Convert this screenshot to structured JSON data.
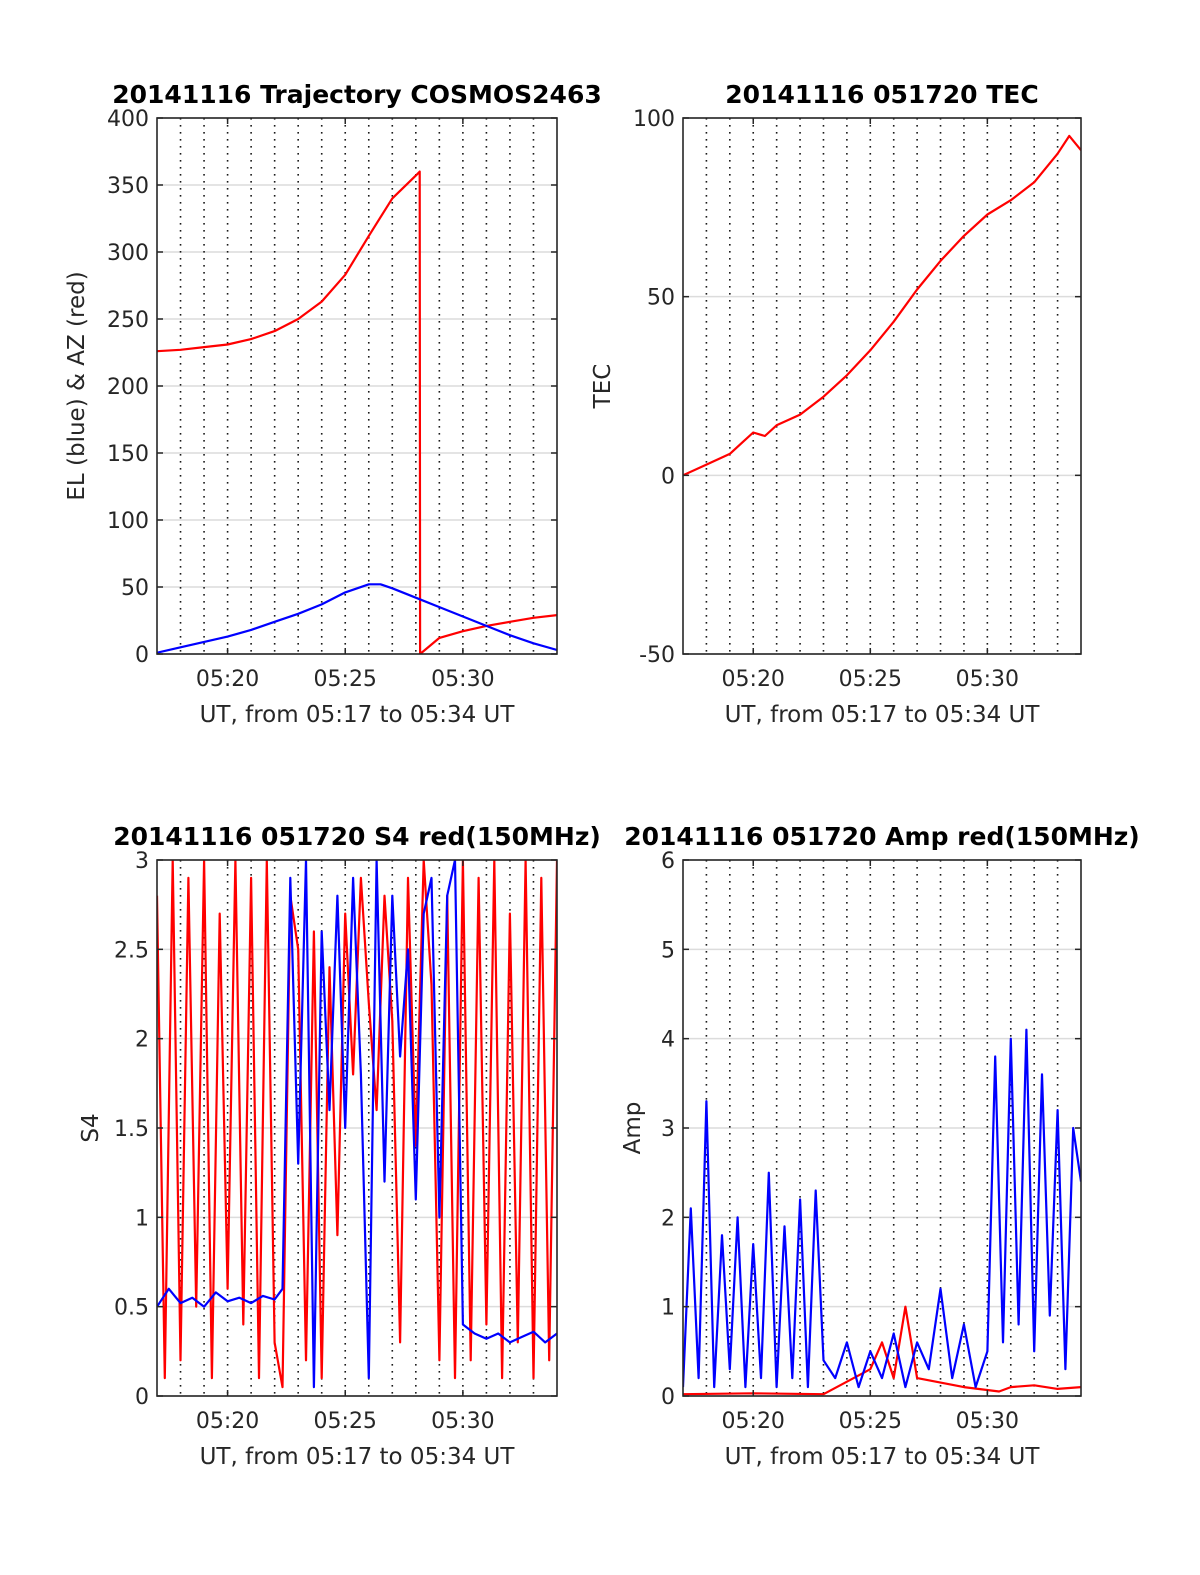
{
  "figure": {
    "background": "#ffffff",
    "axis_color": "#262626",
    "grid_color": "#dcdcdc"
  },
  "chart_data": [
    {
      "id": "trajectory",
      "type": "line",
      "title": "20141116 Trajectory COSMOS2463",
      "xlabel": "UT, from 05:17 to 05:34 UT",
      "ylabel": "EL (blue) & AZ (red)",
      "xlim": [
        "05:17:00",
        "05:34:00"
      ],
      "ylim": [
        0,
        400
      ],
      "yticks": [
        0,
        50,
        100,
        150,
        200,
        250,
        300,
        350,
        400
      ],
      "xticks": [
        "05:20",
        "05:25",
        "05:30"
      ],
      "grid": "horizontal grid lines, dotted vertical lines every minute",
      "series": [
        {
          "color": "#ff0000",
          "x": [
            "05:17:00",
            "05:18:00",
            "05:19:00",
            "05:20:00",
            "05:21:00",
            "05:22:00",
            "05:23:00",
            "05:24:00",
            "05:25:00",
            "05:26:00",
            "05:27:00",
            "05:28:00",
            "05:28:10",
            "05:28:11",
            "05:29:00",
            "05:30:00",
            "05:31:00",
            "05:32:00",
            "05:33:00",
            "05:34:00"
          ],
          "y": [
            226,
            227,
            229,
            231,
            235,
            241,
            250,
            263,
            283,
            312,
            340,
            357,
            360,
            0,
            12,
            17,
            21,
            24,
            27,
            29
          ]
        },
        {
          "color": "#0000ff",
          "x": [
            "05:17:00",
            "05:18:00",
            "05:19:00",
            "05:20:00",
            "05:21:00",
            "05:22:00",
            "05:23:00",
            "05:24:00",
            "05:25:00",
            "05:26:00",
            "05:26:30",
            "05:27:00",
            "05:28:00",
            "05:29:00",
            "05:30:00",
            "05:31:00",
            "05:32:00",
            "05:33:00",
            "05:34:00"
          ],
          "y": [
            1,
            5,
            9,
            13,
            18,
            24,
            30,
            37,
            46,
            52,
            52,
            49,
            42,
            35,
            28,
            21,
            14,
            8,
            3
          ]
        }
      ]
    },
    {
      "id": "tec",
      "type": "line",
      "title": "20141116 051720 TEC",
      "xlabel": "UT, from 05:17 to 05:34 UT",
      "ylabel": "TEC",
      "xlim": [
        "05:17:00",
        "05:34:00"
      ],
      "ylim": [
        -50,
        100
      ],
      "yticks": [
        -50,
        0,
        50,
        100
      ],
      "xticks": [
        "05:20",
        "05:25",
        "05:30"
      ],
      "grid": "horizontal grid lines, dotted vertical lines every minute",
      "series": [
        {
          "color": "#ff0000",
          "x": [
            "05:17:00",
            "05:18:00",
            "05:19:00",
            "05:19:30",
            "05:20:00",
            "05:20:30",
            "05:21:00",
            "05:22:00",
            "05:23:00",
            "05:24:00",
            "05:25:00",
            "05:26:00",
            "05:27:00",
            "05:28:00",
            "05:29:00",
            "05:30:00",
            "05:31:00",
            "05:32:00",
            "05:33:00",
            "05:33:30",
            "05:34:00"
          ],
          "y": [
            0,
            3,
            6,
            9,
            12,
            11,
            14,
            17,
            22,
            28,
            35,
            43,
            52,
            60,
            67,
            73,
            77,
            82,
            90,
            95,
            91
          ]
        }
      ]
    },
    {
      "id": "s4",
      "type": "line",
      "title": "20141116 051720 S4 red(150MHz)",
      "xlabel": "UT, from 05:17 to 05:34 UT",
      "ylabel": "S4",
      "xlim": [
        "05:17:00",
        "05:34:00"
      ],
      "ylim": [
        0,
        3
      ],
      "yticks": [
        0,
        0.5,
        1,
        1.5,
        2,
        2.5,
        3
      ],
      "xticks": [
        "05:20",
        "05:25",
        "05:30"
      ],
      "grid": "horizontal grid lines, dotted vertical lines every minute",
      "series": [
        {
          "color": "#ff0000",
          "x": [
            "05:17:00",
            "05:17:20",
            "05:17:40",
            "05:18:00",
            "05:18:20",
            "05:18:40",
            "05:19:00",
            "05:19:20",
            "05:19:40",
            "05:20:00",
            "05:20:20",
            "05:20:40",
            "05:21:00",
            "05:21:20",
            "05:21:40",
            "05:22:00",
            "05:22:20",
            "05:22:40",
            "05:23:00",
            "05:23:20",
            "05:23:40",
            "05:24:00",
            "05:24:20",
            "05:24:40",
            "05:25:00",
            "05:25:20",
            "05:25:40",
            "05:26:00",
            "05:26:20",
            "05:26:40",
            "05:27:00",
            "05:27:20",
            "05:27:40",
            "05:28:00",
            "05:28:20",
            "05:28:40",
            "05:29:00",
            "05:29:20",
            "05:29:40",
            "05:30:00",
            "05:30:20",
            "05:30:40",
            "05:31:00",
            "05:31:20",
            "05:31:40",
            "05:32:00",
            "05:32:20",
            "05:32:40",
            "05:33:00",
            "05:33:20",
            "05:33:40",
            "05:34:00"
          ],
          "y": [
            2.8,
            0.1,
            3.0,
            0.2,
            2.9,
            0.5,
            3.0,
            0.1,
            2.7,
            0.6,
            3.0,
            0.4,
            2.9,
            0.1,
            3.0,
            0.3,
            0.05,
            2.8,
            2.5,
            0.2,
            2.6,
            0.1,
            2.4,
            0.9,
            2.7,
            1.8,
            2.9,
            2.2,
            1.6,
            2.8,
            2.1,
            0.3,
            2.9,
            1.4,
            3.0,
            2.3,
            0.2,
            2.8,
            0.1,
            3.0,
            0.2,
            2.9,
            0.4,
            3.0,
            0.1,
            2.7,
            0.3,
            3.0,
            0.1,
            2.9,
            0.2,
            3.0
          ]
        },
        {
          "color": "#0000ff",
          "x": [
            "05:17:00",
            "05:17:30",
            "05:18:00",
            "05:18:30",
            "05:19:00",
            "05:19:30",
            "05:20:00",
            "05:20:30",
            "05:21:00",
            "05:21:30",
            "05:22:00",
            "05:22:20",
            "05:22:40",
            "05:23:00",
            "05:23:20",
            "05:23:40",
            "05:24:00",
            "05:24:20",
            "05:24:40",
            "05:25:00",
            "05:25:20",
            "05:25:40",
            "05:26:00",
            "05:26:20",
            "05:26:40",
            "05:27:00",
            "05:27:20",
            "05:27:40",
            "05:28:00",
            "05:28:20",
            "05:28:40",
            "05:29:00",
            "05:29:20",
            "05:29:40",
            "05:30:00",
            "05:30:30",
            "05:31:00",
            "05:31:30",
            "05:32:00",
            "05:32:30",
            "05:33:00",
            "05:33:30",
            "05:34:00"
          ],
          "y": [
            0.5,
            0.6,
            0.52,
            0.55,
            0.5,
            0.58,
            0.53,
            0.55,
            0.52,
            0.56,
            0.54,
            0.6,
            2.9,
            1.3,
            3.0,
            0.05,
            2.6,
            1.6,
            2.8,
            1.5,
            2.9,
            1.8,
            0.1,
            3.0,
            1.2,
            2.8,
            1.9,
            2.5,
            1.1,
            2.7,
            2.9,
            1.0,
            2.8,
            3.0,
            0.4,
            0.35,
            0.32,
            0.35,
            0.3,
            0.33,
            0.36,
            0.3,
            0.35
          ]
        }
      ]
    },
    {
      "id": "amp",
      "type": "line",
      "title": "20141116 051720 Amp red(150MHz)",
      "xlabel": "UT, from 05:17 to 05:34 UT",
      "ylabel": "Amp",
      "xlim": [
        "05:17:00",
        "05:34:00"
      ],
      "ylim": [
        0,
        6
      ],
      "yticks": [
        0,
        1,
        2,
        3,
        4,
        5,
        6
      ],
      "xticks": [
        "05:20",
        "05:25",
        "05:30"
      ],
      "grid": "horizontal grid lines, dotted vertical lines every minute",
      "series": [
        {
          "color": "#ff0000",
          "x": [
            "05:17:00",
            "05:20:00",
            "05:23:00",
            "05:25:00",
            "05:25:30",
            "05:26:00",
            "05:26:30",
            "05:27:00",
            "05:29:00",
            "05:30:30",
            "05:31:00",
            "05:32:00",
            "05:33:00",
            "05:34:00"
          ],
          "y": [
            0.02,
            0.03,
            0.02,
            0.3,
            0.6,
            0.2,
            1.0,
            0.2,
            0.1,
            0.05,
            0.1,
            0.12,
            0.08,
            0.1
          ]
        },
        {
          "color": "#0000ff",
          "x": [
            "05:17:00",
            "05:17:20",
            "05:17:40",
            "05:18:00",
            "05:18:20",
            "05:18:40",
            "05:19:00",
            "05:19:20",
            "05:19:40",
            "05:20:00",
            "05:20:20",
            "05:20:40",
            "05:21:00",
            "05:21:20",
            "05:21:40",
            "05:22:00",
            "05:22:20",
            "05:22:40",
            "05:23:00",
            "05:23:30",
            "05:24:00",
            "05:24:30",
            "05:25:00",
            "05:25:30",
            "05:26:00",
            "05:26:30",
            "05:27:00",
            "05:27:30",
            "05:28:00",
            "05:28:30",
            "05:29:00",
            "05:29:30",
            "05:30:00",
            "05:30:20",
            "05:30:40",
            "05:31:00",
            "05:31:20",
            "05:31:40",
            "05:32:00",
            "05:32:20",
            "05:32:40",
            "05:33:00",
            "05:33:20",
            "05:33:40",
            "05:34:00"
          ],
          "y": [
            0.1,
            2.1,
            0.2,
            3.3,
            0.1,
            1.8,
            0.3,
            2.0,
            0.1,
            1.7,
            0.2,
            2.5,
            0.1,
            1.9,
            0.2,
            2.2,
            0.1,
            2.3,
            0.4,
            0.2,
            0.6,
            0.1,
            0.5,
            0.2,
            0.7,
            0.1,
            0.6,
            0.3,
            1.2,
            0.2,
            0.8,
            0.1,
            0.5,
            3.8,
            0.6,
            4.0,
            0.8,
            4.1,
            0.5,
            3.6,
            0.9,
            3.2,
            0.3,
            3.0,
            2.4
          ]
        }
      ]
    }
  ]
}
